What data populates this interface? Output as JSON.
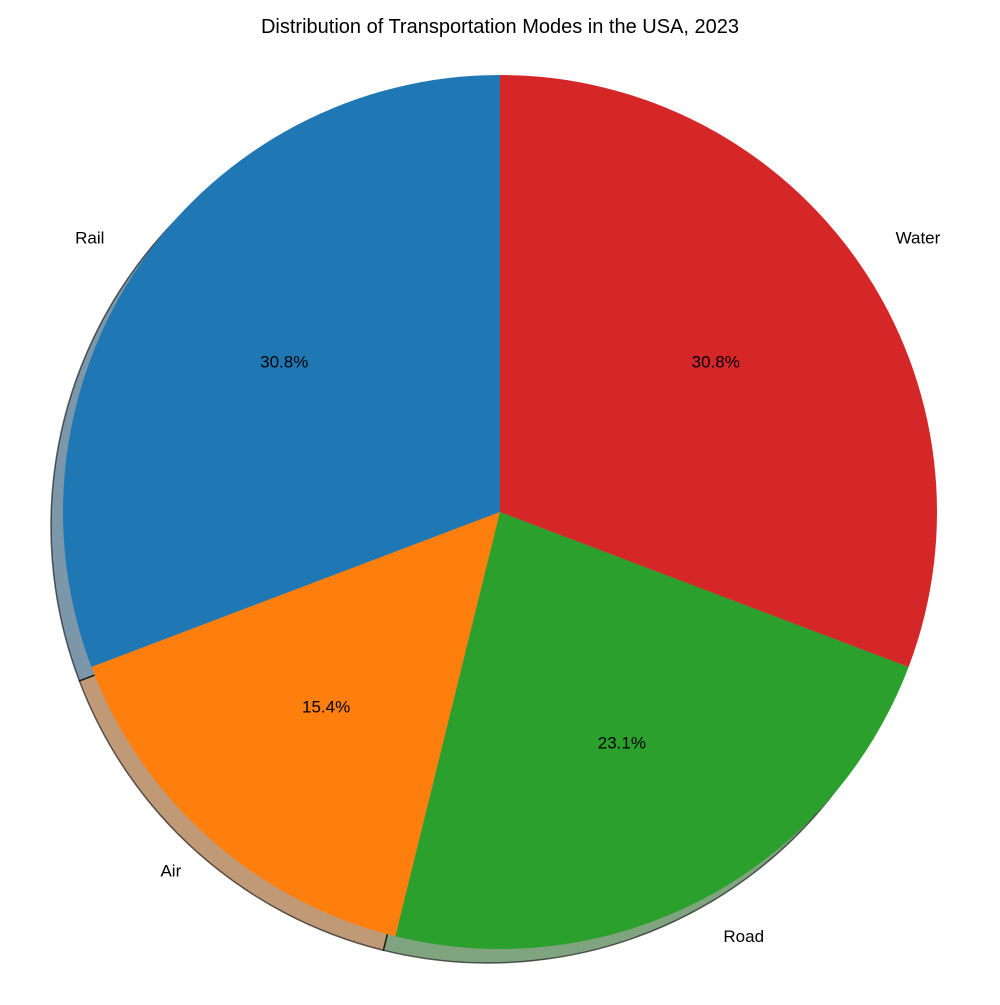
{
  "chart_data": {
    "type": "pie",
    "title": "Distribution of Transportation Modes in the USA, 2023",
    "slices": [
      {
        "label": "Rail",
        "value": 30.8,
        "pct_label": "30.8%",
        "color": "#1f77b4"
      },
      {
        "label": "Air",
        "value": 15.4,
        "pct_label": "15.4%",
        "color": "#ff7f0e"
      },
      {
        "label": "Road",
        "value": 23.1,
        "pct_label": "23.1%",
        "color": "#2ca02c"
      },
      {
        "label": "Water",
        "value": 30.8,
        "pct_label": "30.8%",
        "color": "#d62728"
      }
    ],
    "start_angle_deg": 90,
    "direction": "counterclockwise",
    "shadow": true
  }
}
